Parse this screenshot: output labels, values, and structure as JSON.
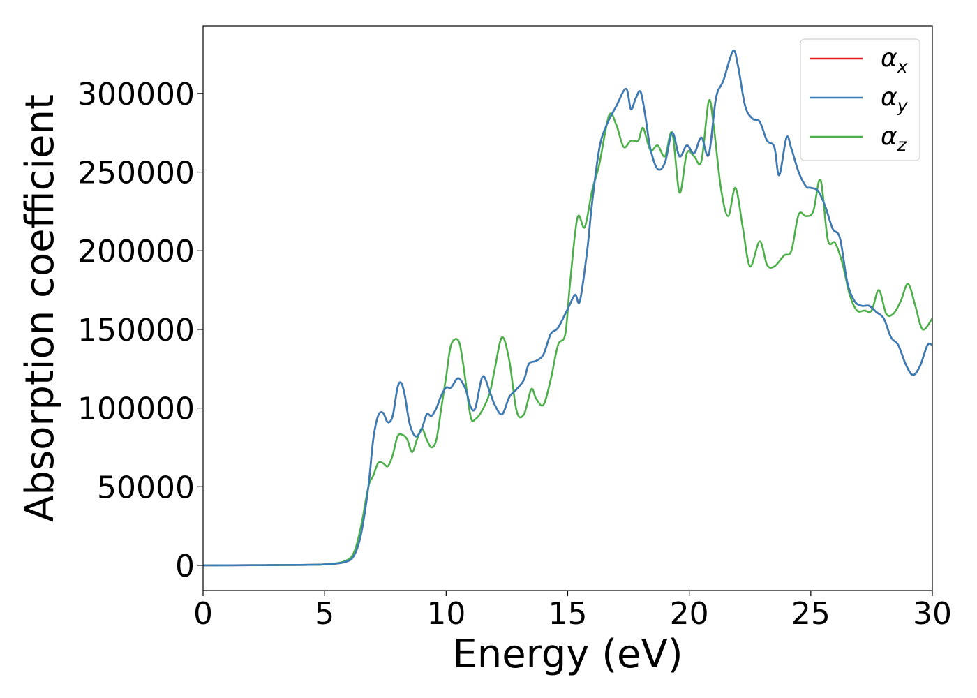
{
  "chart_data": {
    "type": "line",
    "xlabel": "Energy (eV)",
    "ylabel": "Absorption coefficient",
    "xlim": [
      0,
      30
    ],
    "ylim": [
      -16000,
      343000
    ],
    "xticks": [
      0,
      5,
      10,
      15,
      20,
      25,
      30
    ],
    "yticks": [
      0,
      50000,
      100000,
      150000,
      200000,
      250000,
      300000
    ],
    "grid": false,
    "legend_position": "top-right",
    "series": [
      {
        "name": "α_x",
        "label_main": "α",
        "label_sub": "x",
        "color": "#e41a1c",
        "x": [
          0,
          2,
          4,
          5,
          5.8,
          6.2,
          6.5,
          6.8,
          7.0,
          7.2,
          7.4,
          7.6,
          7.8,
          8.0,
          8.15,
          8.3,
          8.5,
          8.75,
          9.0,
          9.2,
          9.4,
          9.6,
          9.8,
          10.0,
          10.2,
          10.5,
          10.8,
          11.0,
          11.2,
          11.5,
          11.8,
          12.0,
          12.3,
          12.6,
          12.9,
          13.2,
          13.4,
          13.7,
          14.0,
          14.3,
          14.6,
          15.0,
          15.3,
          15.5,
          15.8,
          16.0,
          16.3,
          16.6,
          17.0,
          17.4,
          17.6,
          17.8,
          18.0,
          18.2,
          18.4,
          18.7,
          19.0,
          19.3,
          19.6,
          19.9,
          20.2,
          20.5,
          20.8,
          21.1,
          21.4,
          21.8,
          22.0,
          22.3,
          22.6,
          22.9,
          23.2,
          23.5,
          23.7,
          24.0,
          24.2,
          24.5,
          24.8,
          25.0,
          25.3,
          25.6,
          25.9,
          26.2,
          26.5,
          26.8,
          27.1,
          27.4,
          27.7,
          28.0,
          28.3,
          28.6,
          28.9,
          29.2,
          29.5,
          29.8,
          30.0
        ],
        "y": [
          0,
          100,
          300,
          600,
          2000,
          6000,
          20000,
          50000,
          80000,
          95000,
          97000,
          91000,
          95000,
          113000,
          116000,
          108000,
          90000,
          82000,
          87000,
          96000,
          95000,
          100000,
          108000,
          113000,
          113000,
          119000,
          112000,
          101000,
          100000,
          120000,
          110000,
          102000,
          96000,
          107000,
          112000,
          118000,
          128000,
          130000,
          134000,
          147000,
          151000,
          163000,
          172000,
          168000,
          200000,
          230000,
          265000,
          280000,
          292000,
          303000,
          290000,
          297000,
          301000,
          285000,
          265000,
          252000,
          256000,
          275000,
          260000,
          267000,
          262000,
          272000,
          261000,
          297000,
          308000,
          327000,
          318000,
          292000,
          284000,
          282000,
          270000,
          266000,
          248000,
          272000,
          265000,
          250000,
          241000,
          240000,
          238000,
          228000,
          214000,
          208000,
          180000,
          168000,
          165000,
          165000,
          161000,
          157000,
          145000,
          140000,
          128000,
          121000,
          127000,
          140000,
          140000
        ]
      },
      {
        "name": "α_y",
        "label_main": "α",
        "label_sub": "y",
        "color": "#377eb8",
        "x": [
          0,
          2,
          4,
          5,
          5.8,
          6.2,
          6.5,
          6.8,
          7.0,
          7.2,
          7.4,
          7.6,
          7.8,
          8.0,
          8.15,
          8.3,
          8.5,
          8.75,
          9.0,
          9.2,
          9.4,
          9.6,
          9.8,
          10.0,
          10.2,
          10.5,
          10.8,
          11.0,
          11.2,
          11.5,
          11.8,
          12.0,
          12.3,
          12.6,
          12.9,
          13.2,
          13.4,
          13.7,
          14.0,
          14.3,
          14.6,
          15.0,
          15.3,
          15.5,
          15.8,
          16.0,
          16.3,
          16.6,
          17.0,
          17.4,
          17.6,
          17.8,
          18.0,
          18.2,
          18.4,
          18.7,
          19.0,
          19.3,
          19.6,
          19.9,
          20.2,
          20.5,
          20.8,
          21.1,
          21.4,
          21.8,
          22.0,
          22.3,
          22.6,
          22.9,
          23.2,
          23.5,
          23.7,
          24.0,
          24.2,
          24.5,
          24.8,
          25.0,
          25.3,
          25.6,
          25.9,
          26.2,
          26.5,
          26.8,
          27.1,
          27.4,
          27.7,
          28.0,
          28.3,
          28.6,
          28.9,
          29.2,
          29.5,
          29.8,
          30.0
        ],
        "y": [
          0,
          100,
          300,
          600,
          2000,
          6000,
          20000,
          50000,
          80000,
          95000,
          97000,
          91000,
          95000,
          113000,
          116000,
          108000,
          90000,
          82000,
          87000,
          96000,
          95000,
          100000,
          108000,
          113000,
          113000,
          119000,
          112000,
          101000,
          100000,
          120000,
          110000,
          102000,
          96000,
          107000,
          112000,
          118000,
          128000,
          130000,
          134000,
          147000,
          151000,
          163000,
          172000,
          168000,
          200000,
          230000,
          265000,
          280000,
          292000,
          303000,
          290000,
          297000,
          301000,
          285000,
          265000,
          252000,
          256000,
          275000,
          260000,
          267000,
          262000,
          272000,
          261000,
          297000,
          308000,
          327000,
          318000,
          292000,
          284000,
          282000,
          270000,
          266000,
          248000,
          272000,
          265000,
          250000,
          241000,
          240000,
          238000,
          228000,
          214000,
          208000,
          180000,
          168000,
          165000,
          165000,
          161000,
          157000,
          145000,
          140000,
          128000,
          121000,
          127000,
          140000,
          140000
        ]
      },
      {
        "name": "α_z",
        "label_main": "α",
        "label_sub": "z",
        "color": "#4daf4a",
        "x": [
          0,
          2,
          4,
          5,
          5.8,
          6.2,
          6.5,
          6.8,
          7.0,
          7.2,
          7.4,
          7.6,
          7.8,
          8.0,
          8.2,
          8.4,
          8.6,
          8.8,
          9.0,
          9.2,
          9.4,
          9.6,
          9.8,
          10.0,
          10.2,
          10.5,
          10.7,
          11.0,
          11.2,
          11.5,
          11.8,
          12.0,
          12.3,
          12.6,
          12.9,
          13.2,
          13.5,
          13.7,
          14.0,
          14.3,
          14.6,
          14.9,
          15.1,
          15.4,
          15.7,
          16.0,
          16.3,
          16.7,
          17.0,
          17.3,
          17.6,
          17.9,
          18.1,
          18.4,
          18.7,
          19.0,
          19.3,
          19.6,
          19.9,
          20.2,
          20.5,
          20.8,
          21.0,
          21.3,
          21.6,
          21.9,
          22.2,
          22.5,
          22.9,
          23.2,
          23.5,
          23.9,
          24.2,
          24.5,
          24.8,
          25.1,
          25.4,
          25.7,
          26.0,
          26.3,
          26.6,
          26.9,
          27.2,
          27.5,
          27.8,
          28.1,
          28.4,
          28.7,
          29.0,
          29.3,
          29.6,
          30.0
        ],
        "y": [
          0,
          100,
          300,
          600,
          2500,
          8000,
          25000,
          50000,
          57000,
          65000,
          65000,
          63000,
          70000,
          82000,
          83000,
          80000,
          72000,
          80000,
          87000,
          80000,
          75000,
          80000,
          100000,
          120000,
          140000,
          143000,
          128000,
          95000,
          93000,
          99000,
          110000,
          125000,
          145000,
          130000,
          98000,
          96000,
          112000,
          106000,
          102000,
          118000,
          140000,
          147000,
          180000,
          221000,
          215000,
          238000,
          255000,
          286000,
          280000,
          266000,
          270000,
          270000,
          278000,
          264000,
          267000,
          260000,
          275000,
          237000,
          262000,
          260000,
          257000,
          295000,
          280000,
          240000,
          222000,
          240000,
          215000,
          190000,
          206000,
          191000,
          190000,
          197000,
          200000,
          223000,
          222000,
          225000,
          245000,
          207000,
          205000,
          192000,
          172000,
          162000,
          162000,
          162000,
          175000,
          160000,
          160000,
          168000,
          179000,
          165000,
          150000,
          157000
        ]
      }
    ]
  }
}
